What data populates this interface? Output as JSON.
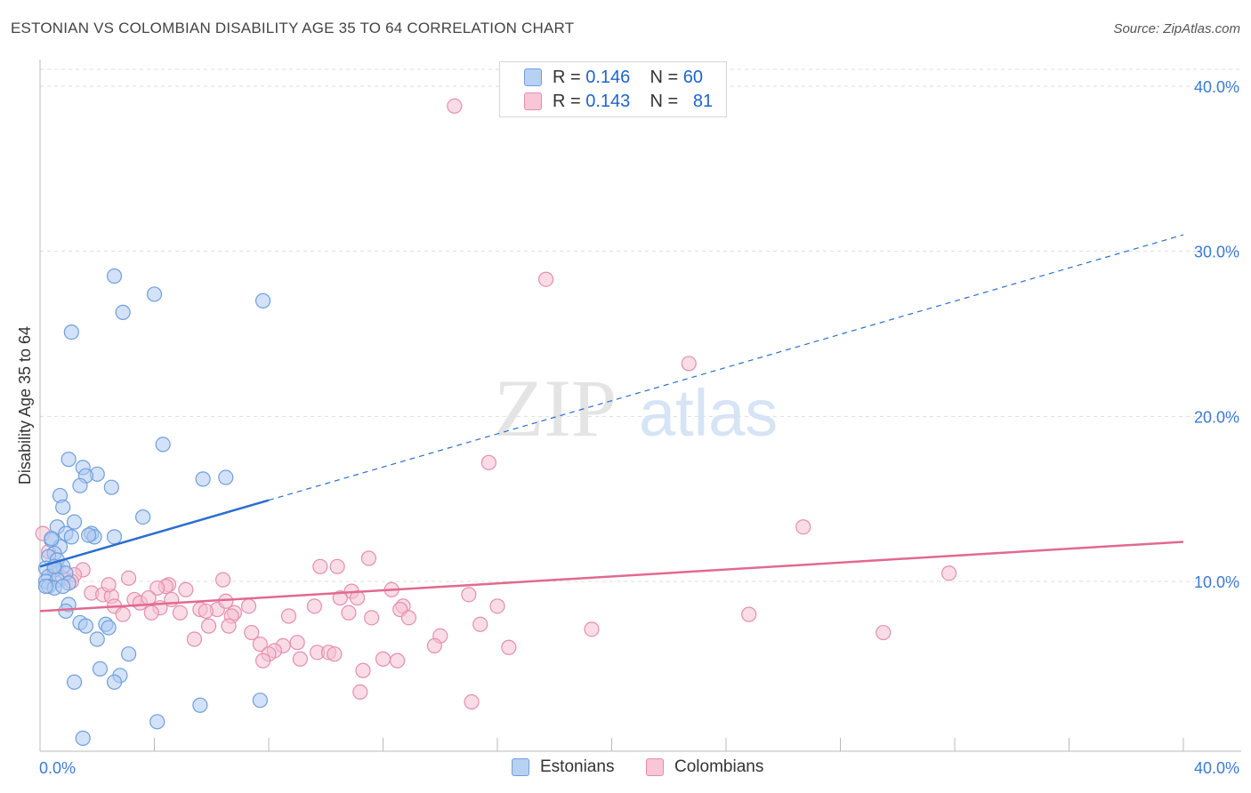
{
  "header": {
    "title": "ESTONIAN VS COLOMBIAN DISABILITY AGE 35 TO 64 CORRELATION CHART",
    "source": "Source: ZipAtlas.com"
  },
  "watermark": {
    "zip": "ZIP",
    "atlas": "atlas"
  },
  "legend": {
    "rows": [
      {
        "r_label": "R =",
        "r_value": "0.146",
        "n_label": "N =",
        "n_value": "60"
      },
      {
        "r_label": "R =",
        "r_value": "0.143",
        "n_label": "N =",
        "n_value": "81"
      }
    ]
  },
  "bottom_legend": {
    "estonians": "Estonians",
    "colombians": "Colombians"
  },
  "colors": {
    "estonians_fill": "#aecbf2",
    "estonians_stroke": "#6f9fdc",
    "estonians_line": "#2a6fcf",
    "colombians_fill": "#f6c0d1",
    "colombians_stroke": "#e48eac",
    "colombians_line": "#e2698f",
    "tick_label": "#3a7bd5",
    "grid": "#dddddd"
  },
  "chart_data": {
    "type": "scatter",
    "title": "ESTONIAN VS COLOMBIAN DISABILITY AGE 35 TO 64 CORRELATION CHART",
    "xlabel": "",
    "ylabel": "Disability Age 35 to 64",
    "xlim": [
      0,
      40
    ],
    "ylim": [
      0,
      40
    ],
    "x_tick_labels": [
      "0.0%",
      "40.0%"
    ],
    "y_ticks": [
      10,
      20,
      30,
      40
    ],
    "y_tick_labels": [
      "10.0%",
      "20.0%",
      "30.0%",
      "40.0%"
    ],
    "grid": true,
    "series": [
      {
        "name": "Estonians",
        "r": 0.146,
        "n": 60,
        "trend": {
          "x0": 0,
          "y0": 10.9,
          "x1": 40,
          "y1": 31.0,
          "solid_until_x": 8.0
        },
        "points": [
          [
            2.6,
            28.5
          ],
          [
            4.0,
            27.4
          ],
          [
            7.8,
            27.0
          ],
          [
            2.9,
            26.3
          ],
          [
            1.1,
            25.1
          ],
          [
            4.3,
            18.3
          ],
          [
            1.0,
            17.4
          ],
          [
            1.5,
            16.9
          ],
          [
            2.0,
            16.5
          ],
          [
            1.6,
            16.4
          ],
          [
            5.7,
            16.2
          ],
          [
            6.5,
            16.3
          ],
          [
            1.4,
            15.8
          ],
          [
            2.5,
            15.7
          ],
          [
            0.7,
            15.2
          ],
          [
            0.8,
            14.5
          ],
          [
            3.6,
            13.9
          ],
          [
            1.2,
            13.6
          ],
          [
            0.6,
            13.3
          ],
          [
            0.9,
            12.9
          ],
          [
            1.8,
            12.9
          ],
          [
            2.6,
            12.7
          ],
          [
            1.1,
            12.7
          ],
          [
            0.4,
            12.5
          ],
          [
            1.9,
            12.7
          ],
          [
            0.7,
            12.1
          ],
          [
            0.5,
            11.7
          ],
          [
            0.3,
            11.5
          ],
          [
            0.6,
            11.3
          ],
          [
            0.8,
            10.9
          ],
          [
            0.2,
            10.8
          ],
          [
            0.5,
            10.7
          ],
          [
            0.9,
            10.5
          ],
          [
            0.3,
            10.3
          ],
          [
            0.6,
            10.1
          ],
          [
            0.2,
            10.0
          ],
          [
            1.0,
            9.9
          ],
          [
            0.3,
            9.7
          ],
          [
            0.5,
            9.6
          ],
          [
            0.2,
            9.7
          ],
          [
            0.8,
            9.7
          ],
          [
            1.0,
            8.6
          ],
          [
            0.9,
            8.2
          ],
          [
            1.4,
            7.5
          ],
          [
            1.6,
            7.3
          ],
          [
            2.3,
            7.4
          ],
          [
            2.4,
            7.2
          ],
          [
            2.0,
            6.5
          ],
          [
            3.1,
            5.6
          ],
          [
            2.1,
            4.7
          ],
          [
            2.8,
            4.3
          ],
          [
            1.2,
            3.9
          ],
          [
            2.6,
            3.9
          ],
          [
            5.6,
            2.5
          ],
          [
            7.7,
            2.8
          ],
          [
            4.1,
            1.5
          ],
          [
            1.5,
            0.5
          ],
          [
            0.4,
            12.6
          ],
          [
            1.7,
            12.8
          ],
          [
            0.5,
            10.9
          ]
        ]
      },
      {
        "name": "Colombians",
        "r": 0.143,
        "n": 81,
        "trend": {
          "x0": 0,
          "y0": 8.2,
          "x1": 40,
          "y1": 12.4
        },
        "points": [
          [
            14.5,
            38.8
          ],
          [
            17.7,
            28.3
          ],
          [
            22.7,
            23.2
          ],
          [
            15.7,
            17.2
          ],
          [
            26.7,
            13.3
          ],
          [
            0.1,
            12.9
          ],
          [
            31.8,
            10.5
          ],
          [
            11.5,
            11.4
          ],
          [
            9.8,
            10.9
          ],
          [
            10.4,
            10.9
          ],
          [
            0.6,
            10.9
          ],
          [
            1.5,
            10.7
          ],
          [
            1.2,
            10.4
          ],
          [
            0.8,
            10.2
          ],
          [
            3.1,
            10.2
          ],
          [
            6.4,
            10.1
          ],
          [
            1.1,
            10.0
          ],
          [
            4.5,
            9.8
          ],
          [
            4.4,
            9.7
          ],
          [
            4.1,
            9.6
          ],
          [
            5.1,
            9.5
          ],
          [
            12.3,
            9.5
          ],
          [
            10.9,
            9.4
          ],
          [
            1.8,
            9.3
          ],
          [
            2.2,
            9.2
          ],
          [
            2.5,
            9.1
          ],
          [
            15.0,
            9.2
          ],
          [
            10.5,
            9.0
          ],
          [
            3.3,
            8.9
          ],
          [
            3.5,
            8.7
          ],
          [
            2.6,
            8.5
          ],
          [
            7.3,
            8.5
          ],
          [
            9.6,
            8.5
          ],
          [
            12.7,
            8.5
          ],
          [
            16.0,
            8.5
          ],
          [
            4.2,
            8.4
          ],
          [
            5.6,
            8.3
          ],
          [
            6.2,
            8.3
          ],
          [
            5.8,
            8.2
          ],
          [
            12.6,
            8.3
          ],
          [
            6.8,
            8.1
          ],
          [
            10.8,
            8.1
          ],
          [
            3.9,
            8.1
          ],
          [
            2.9,
            8.0
          ],
          [
            4.9,
            8.1
          ],
          [
            24.8,
            8.0
          ],
          [
            8.7,
            7.9
          ],
          [
            11.6,
            7.8
          ],
          [
            12.9,
            7.8
          ],
          [
            6.7,
            7.9
          ],
          [
            5.9,
            7.3
          ],
          [
            6.6,
            7.3
          ],
          [
            15.4,
            7.4
          ],
          [
            19.3,
            7.1
          ],
          [
            7.4,
            6.9
          ],
          [
            29.5,
            6.9
          ],
          [
            14.0,
            6.7
          ],
          [
            5.4,
            6.5
          ],
          [
            9.0,
            6.3
          ],
          [
            7.7,
            6.2
          ],
          [
            8.5,
            6.1
          ],
          [
            13.8,
            6.1
          ],
          [
            16.4,
            6.0
          ],
          [
            8.2,
            5.8
          ],
          [
            9.7,
            5.7
          ],
          [
            10.1,
            5.7
          ],
          [
            10.3,
            5.6
          ],
          [
            8.0,
            5.6
          ],
          [
            9.1,
            5.3
          ],
          [
            12.0,
            5.3
          ],
          [
            12.5,
            5.2
          ],
          [
            7.8,
            5.2
          ],
          [
            11.3,
            4.6
          ],
          [
            11.2,
            3.3
          ],
          [
            15.1,
            2.7
          ],
          [
            0.3,
            11.8
          ],
          [
            2.4,
            9.8
          ],
          [
            3.8,
            9.0
          ],
          [
            6.5,
            8.8
          ],
          [
            11.1,
            9.0
          ],
          [
            4.6,
            8.9
          ]
        ]
      }
    ]
  }
}
